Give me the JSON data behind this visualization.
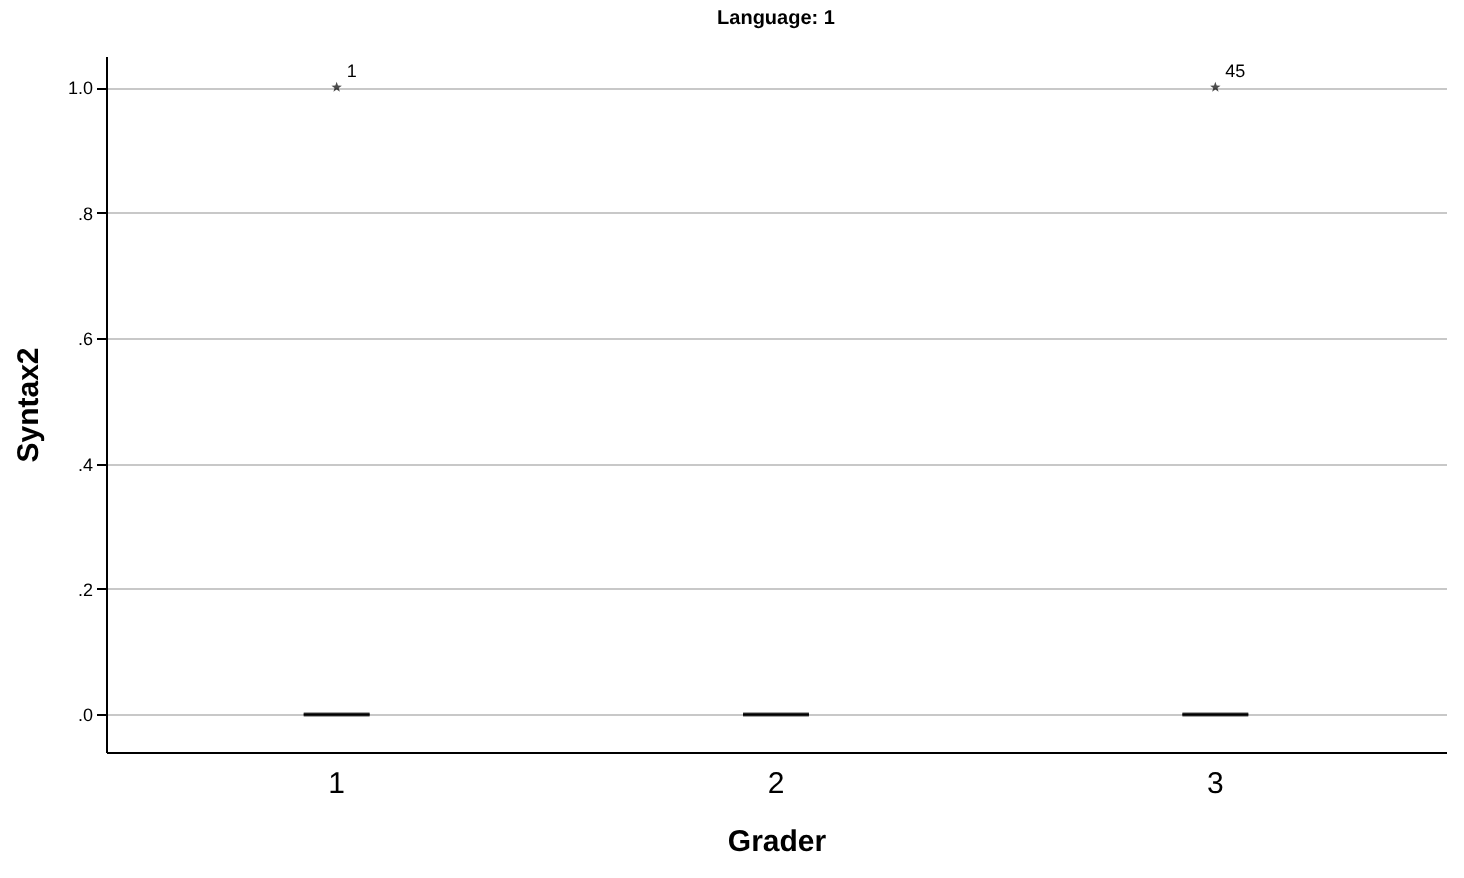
{
  "chart_data": {
    "type": "box",
    "title": "Language: 1",
    "xlabel": "Grader",
    "ylabel": "Syntax2",
    "categories": [
      "1",
      "2",
      "3"
    ],
    "boxes": [
      {
        "low": 0,
        "q1": 0,
        "median": 0,
        "q3": 0,
        "high": 0,
        "outliers": [
          1
        ]
      },
      {
        "low": 0,
        "q1": 0,
        "median": 0,
        "q3": 0,
        "high": 0
      },
      {
        "low": 0,
        "q1": 0,
        "median": 0,
        "q3": 0,
        "high": 0,
        "outliers": [
          1
        ]
      }
    ],
    "ylim": [
      -0.06,
      1.05
    ],
    "yticks": [
      {
        "value": 0,
        "label": ".0"
      },
      {
        "value": 0.2,
        "label": ".2"
      },
      {
        "value": 0.4,
        "label": ".4"
      },
      {
        "value": 0.6,
        "label": ".6"
      },
      {
        "value": 0.8,
        "label": ".8"
      },
      {
        "value": 1,
        "label": "1.0"
      }
    ],
    "grid": "y",
    "marker": "star",
    "annotations": [
      "1",
      "45"
    ]
  }
}
